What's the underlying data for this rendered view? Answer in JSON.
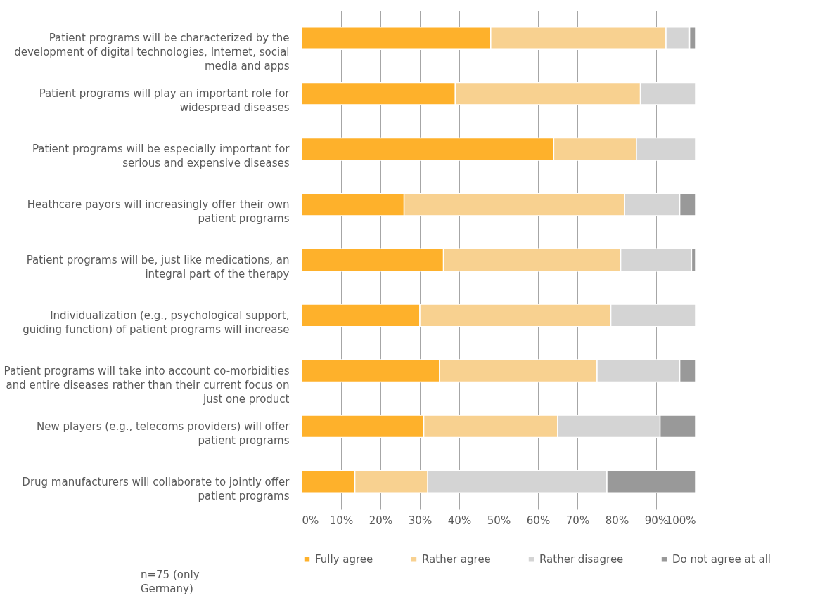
{
  "chart_data": {
    "type": "bar",
    "orientation": "horizontal",
    "stacked": true,
    "categories": [
      "Patient programs will be characterized by the development of digital technologies, Internet, social media and apps",
      "Patient programs will play an important role for widespread diseases",
      "Patient programs will be especially important for serious and expensive diseases",
      "Heathcare payors will increasingly offer their own patient programs",
      "Patient programs will be, just like medications, an integral part of the therapy",
      "Individualization (e.g., psychological support, guiding function) of patient programs will increase",
      "Patient programs will take into account co-morbidities and entire diseases rather than their current focus on just one product",
      "New players (e.g., telecoms providers) will offer patient programs",
      "Drug manufacturers will collaborate to jointly offer patient programs"
    ],
    "series": [
      {
        "name": "Fully agree",
        "color": "#feb12b",
        "values": [
          48,
          39,
          64,
          26,
          36,
          30,
          35,
          31,
          13.5
        ]
      },
      {
        "name": "Rather agree",
        "color": "#f8d190",
        "values": [
          44.5,
          47,
          21,
          56,
          45,
          48.5,
          40,
          34,
          18.5
        ]
      },
      {
        "name": "Rather disagree",
        "color": "#d4d4d4",
        "values": [
          6,
          14,
          15,
          14,
          18,
          21.5,
          21,
          26,
          45.5
        ]
      },
      {
        "name": "Do not agree at all",
        "color": "#999999",
        "values": [
          1.5,
          null,
          null,
          4,
          1,
          null,
          4,
          9,
          22.5
        ]
      }
    ],
    "xlim": [
      0,
      100
    ],
    "xticks": [
      {
        "value": 0,
        "label": "0%"
      },
      {
        "value": 10,
        "label": "10%"
      },
      {
        "value": 20,
        "label": "20%"
      },
      {
        "value": 30,
        "label": "30%"
      },
      {
        "value": 40,
        "label": "40%"
      },
      {
        "value": 50,
        "label": "50%"
      },
      {
        "value": 60,
        "label": "60%"
      },
      {
        "value": 70,
        "label": "70%"
      },
      {
        "value": 80,
        "label": "80%"
      },
      {
        "value": 90,
        "label": "90%"
      },
      {
        "value": 100,
        "label": "100%"
      }
    ],
    "grid": "x",
    "legend": "bottom",
    "annotations": [
      "n=75 (only Germany)"
    ]
  }
}
